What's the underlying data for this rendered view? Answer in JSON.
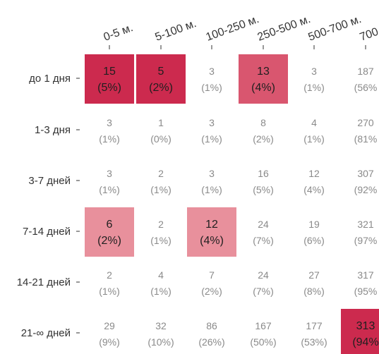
{
  "chart_data": {
    "type": "heatmap",
    "x_categories": [
      "0-5 м.",
      "5-100 м.",
      "100-250 м.",
      "250-500 м.",
      "500-700 м.",
      "700"
    ],
    "y_categories": [
      "до 1 дня",
      "1-3 дня",
      "3-7 дней",
      "7-14 дней",
      "14-21 дней",
      "21-∞ дней"
    ],
    "cells": [
      [
        {
          "value": "15",
          "pct": "(5%)",
          "highlight": "strong"
        },
        {
          "value": "5",
          "pct": "(2%)",
          "highlight": "strong"
        },
        {
          "value": "3",
          "pct": "(1%)",
          "highlight": "none"
        },
        {
          "value": "13",
          "pct": "(4%)",
          "highlight": "medium"
        },
        {
          "value": "3",
          "pct": "(1%)",
          "highlight": "none"
        },
        {
          "value": "187",
          "pct": "(56%",
          "highlight": "none"
        }
      ],
      [
        {
          "value": "3",
          "pct": "(1%)",
          "highlight": "none"
        },
        {
          "value": "1",
          "pct": "(0%)",
          "highlight": "none"
        },
        {
          "value": "3",
          "pct": "(1%)",
          "highlight": "none"
        },
        {
          "value": "8",
          "pct": "(2%)",
          "highlight": "none"
        },
        {
          "value": "4",
          "pct": "(1%)",
          "highlight": "none"
        },
        {
          "value": "270",
          "pct": "(81%",
          "highlight": "none"
        }
      ],
      [
        {
          "value": "3",
          "pct": "(1%)",
          "highlight": "none"
        },
        {
          "value": "2",
          "pct": "(1%)",
          "highlight": "none"
        },
        {
          "value": "3",
          "pct": "(1%)",
          "highlight": "none"
        },
        {
          "value": "16",
          "pct": "(5%)",
          "highlight": "none"
        },
        {
          "value": "12",
          "pct": "(4%)",
          "highlight": "none"
        },
        {
          "value": "307",
          "pct": "(92%",
          "highlight": "none"
        }
      ],
      [
        {
          "value": "6",
          "pct": "(2%)",
          "highlight": "light"
        },
        {
          "value": "2",
          "pct": "(1%)",
          "highlight": "none"
        },
        {
          "value": "12",
          "pct": "(4%)",
          "highlight": "light"
        },
        {
          "value": "24",
          "pct": "(7%)",
          "highlight": "none"
        },
        {
          "value": "19",
          "pct": "(6%)",
          "highlight": "none"
        },
        {
          "value": "321",
          "pct": "(97%",
          "highlight": "none"
        }
      ],
      [
        {
          "value": "2",
          "pct": "(1%)",
          "highlight": "none"
        },
        {
          "value": "4",
          "pct": "(1%)",
          "highlight": "none"
        },
        {
          "value": "7",
          "pct": "(2%)",
          "highlight": "none"
        },
        {
          "value": "24",
          "pct": "(7%)",
          "highlight": "none"
        },
        {
          "value": "27",
          "pct": "(8%)",
          "highlight": "none"
        },
        {
          "value": "317",
          "pct": "(95%",
          "highlight": "none"
        }
      ],
      [
        {
          "value": "29",
          "pct": "(9%)",
          "highlight": "none"
        },
        {
          "value": "32",
          "pct": "(10%)",
          "highlight": "none"
        },
        {
          "value": "86",
          "pct": "(26%)",
          "highlight": "none"
        },
        {
          "value": "167",
          "pct": "(50%)",
          "highlight": "none"
        },
        {
          "value": "177",
          "pct": "(53%)",
          "highlight": "none"
        },
        {
          "value": "313",
          "pct": "(94%",
          "highlight": "strong"
        }
      ]
    ],
    "colors": {
      "strong": "#cc2a4e",
      "medium": "#d9566f",
      "light": "#e8909c",
      "text_dark": "#1f1f1f",
      "text_muted": "#8a8a8a",
      "label": "#333333"
    },
    "grid": false,
    "legend": "none"
  }
}
